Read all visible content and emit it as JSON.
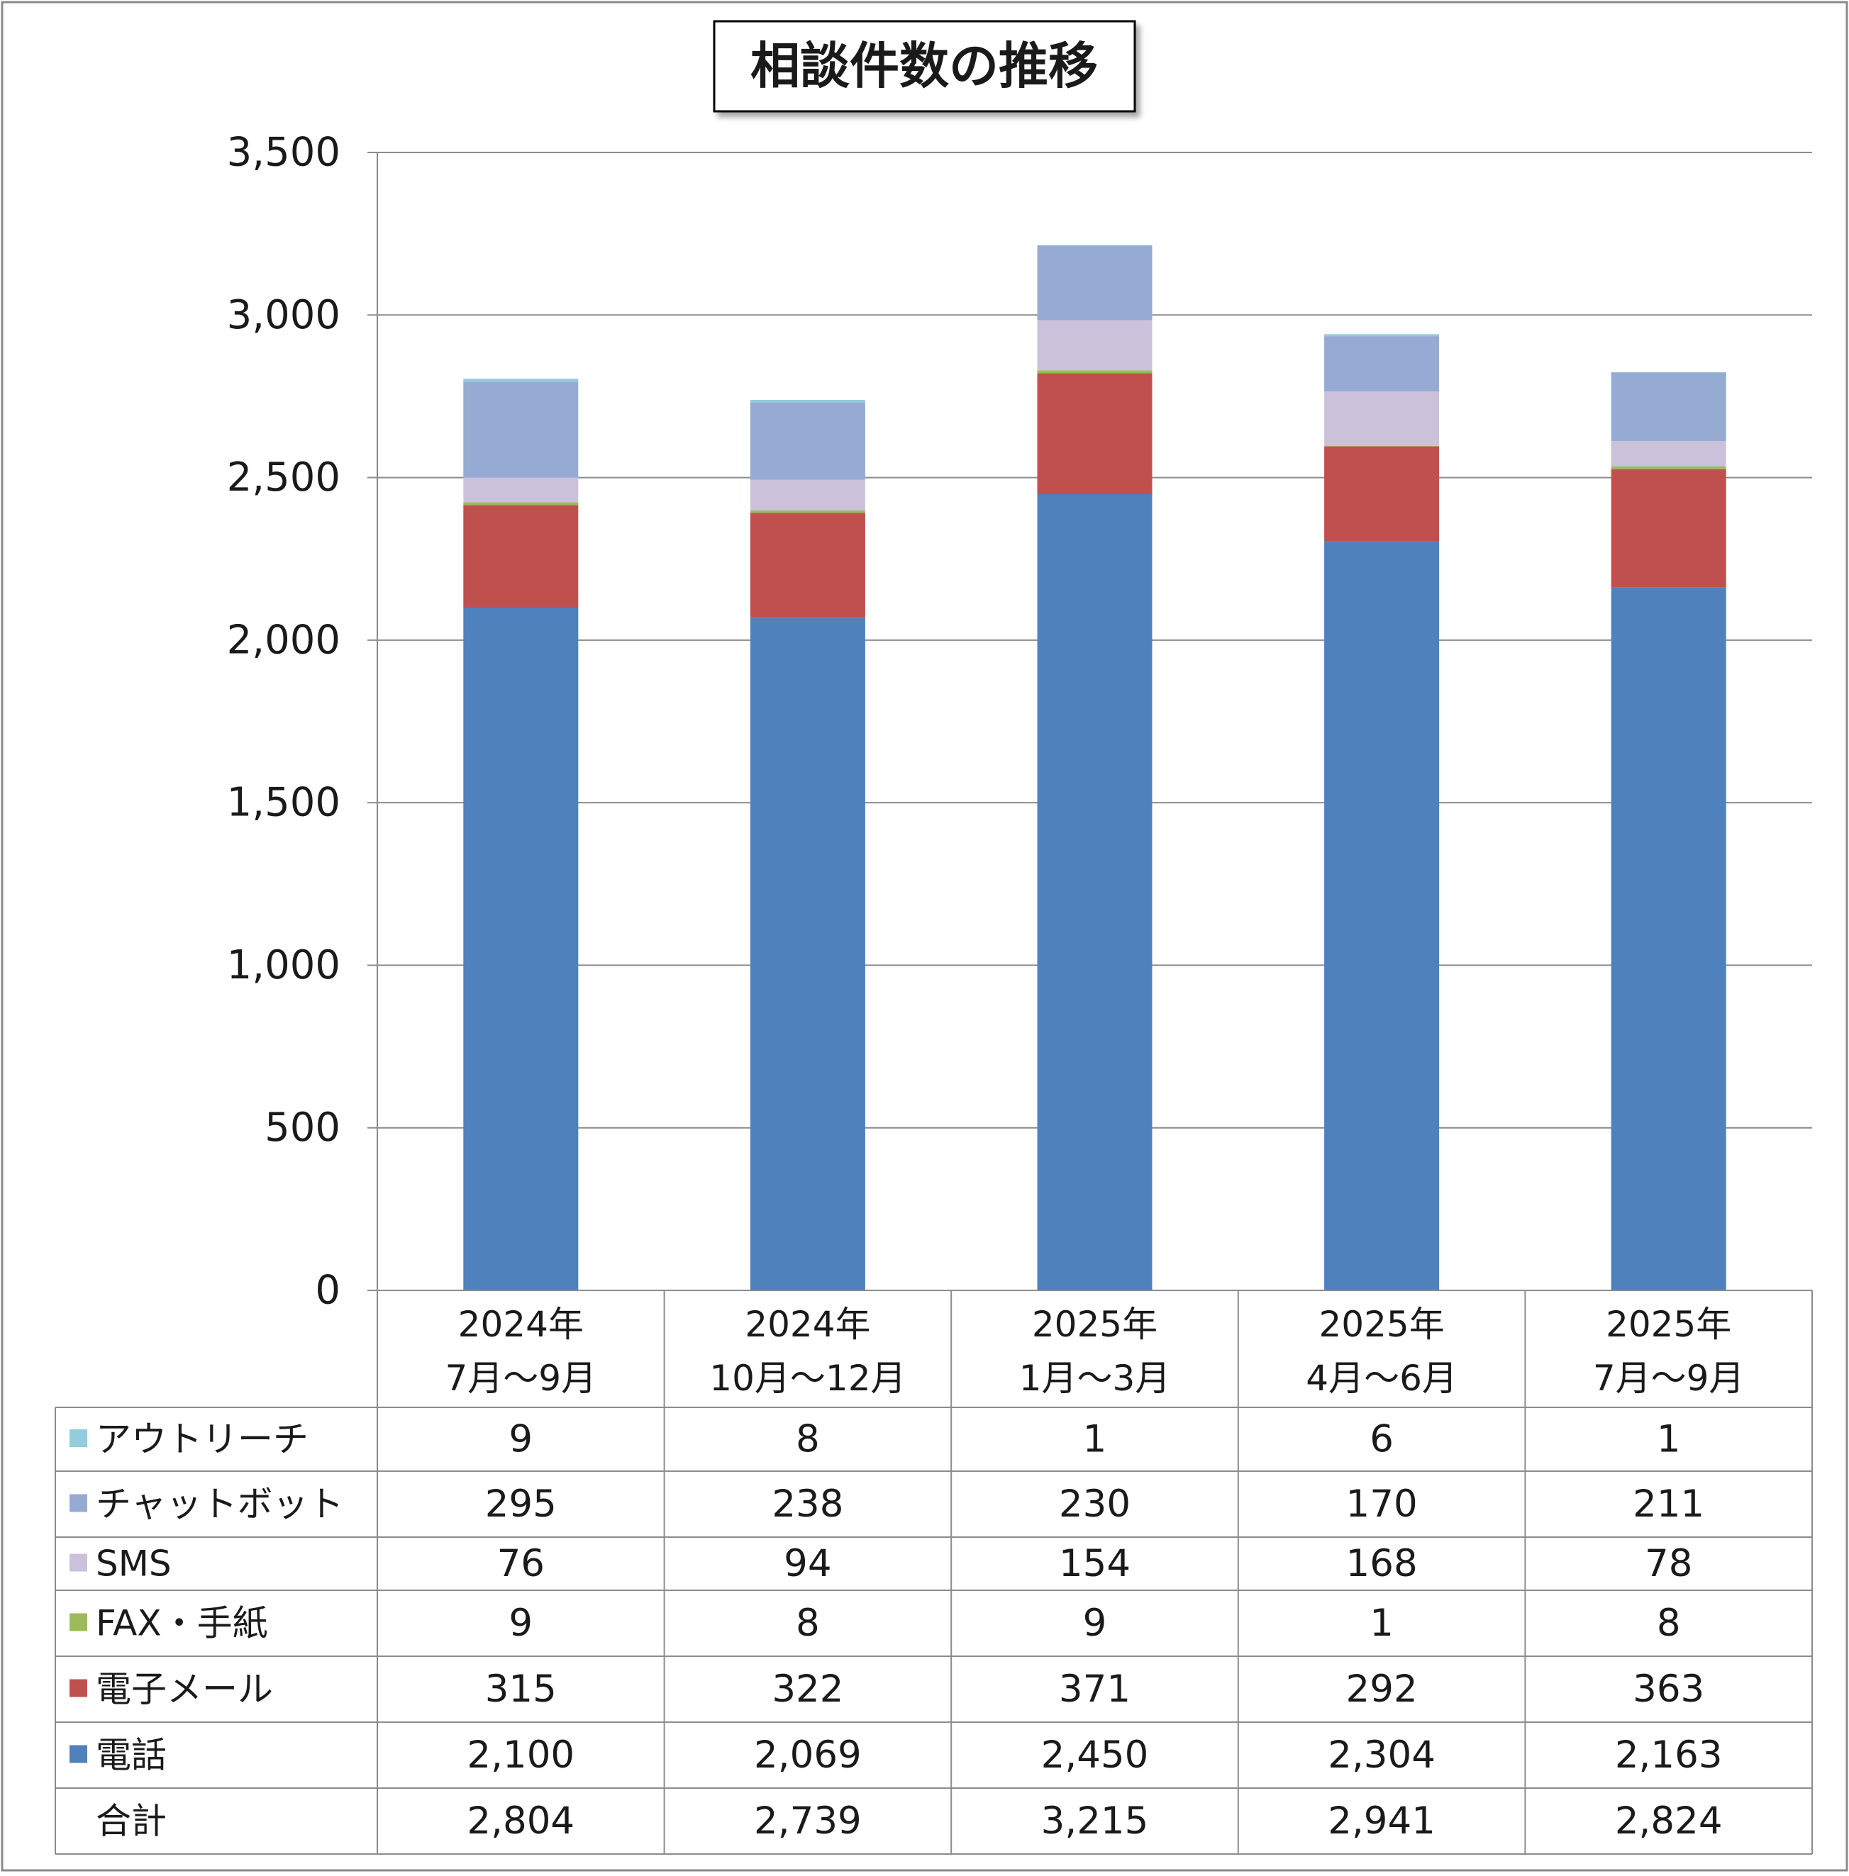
{
  "chart_data": {
    "type": "bar",
    "stacked": true,
    "title": "相談件数の推移",
    "ylim": [
      0,
      3500
    ],
    "y_ticks": [
      "0",
      "500",
      "1,000",
      "1,500",
      "2,000",
      "2,500",
      "3,000",
      "3,500"
    ],
    "grid": true,
    "legend_placement": "data-table-left",
    "categories": [
      [
        "2024年",
        "7月～9月"
      ],
      [
        "2024年",
        "10月～12月"
      ],
      [
        "2025年",
        "1月～3月"
      ],
      [
        "2025年",
        "4月～6月"
      ],
      [
        "2025年",
        "7月～9月"
      ]
    ],
    "series": [
      {
        "name": "電話",
        "color": "#4f81bd",
        "values": [
          2100,
          2069,
          2450,
          2304,
          2163
        ],
        "labels": [
          "2,100",
          "2,069",
          "2,450",
          "2,304",
          "2,163"
        ]
      },
      {
        "name": "電子メール",
        "color": "#c0504d",
        "values": [
          315,
          322,
          371,
          292,
          363
        ],
        "labels": [
          "315",
          "322",
          "371",
          "292",
          "363"
        ]
      },
      {
        "name": "FAX・手紙",
        "color": "#9bbb59",
        "values": [
          9,
          8,
          9,
          1,
          8
        ],
        "labels": [
          "9",
          "8",
          "9",
          "1",
          "8"
        ]
      },
      {
        "name": "SMS",
        "color": "#ccc1da",
        "values": [
          76,
          94,
          154,
          168,
          78
        ],
        "labels": [
          "76",
          "94",
          "154",
          "168",
          "78"
        ]
      },
      {
        "name": "チャットボット",
        "color": "#95abd3",
        "values": [
          295,
          238,
          230,
          170,
          211
        ],
        "labels": [
          "295",
          "238",
          "230",
          "170",
          "211"
        ]
      },
      {
        "name": "アウトリーチ",
        "color": "#93cddd",
        "values": [
          9,
          8,
          1,
          6,
          1
        ],
        "labels": [
          "9",
          "8",
          "1",
          "6",
          "1"
        ]
      }
    ],
    "total": {
      "name": "合計",
      "labels": [
        "2,804",
        "2,739",
        "3,215",
        "2,941",
        "2,824"
      ]
    }
  }
}
